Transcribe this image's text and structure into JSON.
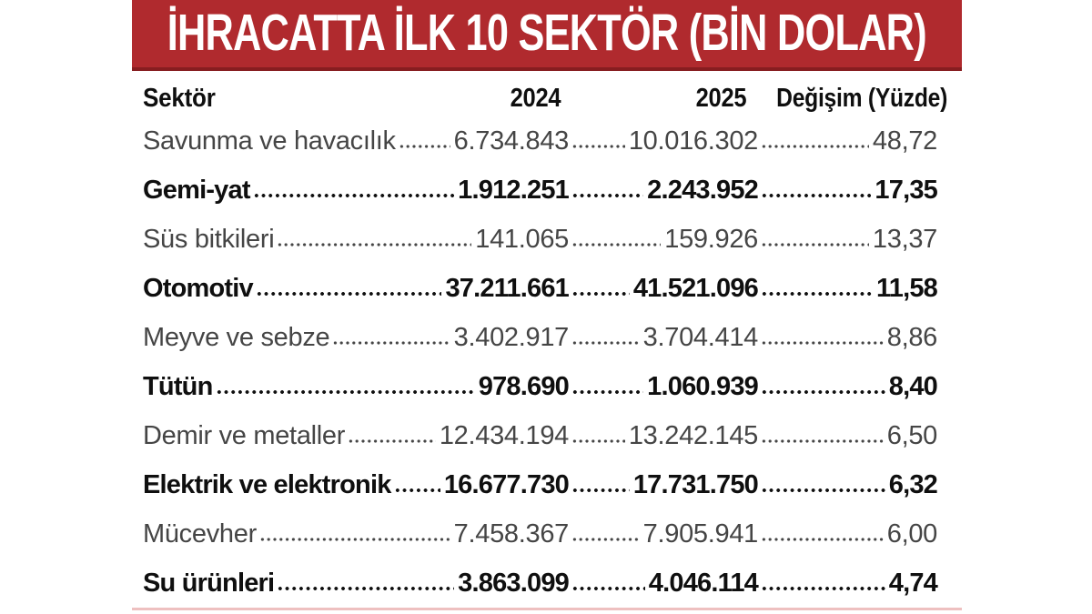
{
  "title": "İHRACATTA İLK 10 SEKTÖR (BİN DOLAR)",
  "header": {
    "sector": "Sektör",
    "y2024": "2024",
    "y2025": "2025",
    "change": "Değişim (Yüzde)"
  },
  "rows": [
    {
      "sector": "Savunma ve havacılık",
      "v2024": "6.734.843",
      "v2025": "10.016.302",
      "change": "48,72",
      "bold": false
    },
    {
      "sector": "Gemi-yat",
      "v2024": "1.912.251",
      "v2025": "2.243.952",
      "change": "17,35",
      "bold": true
    },
    {
      "sector": "Süs bitkileri",
      "v2024": "141.065",
      "v2025": "159.926",
      "change": "13,37",
      "bold": false
    },
    {
      "sector": "Otomotiv",
      "v2024": "37.211.661",
      "v2025": "41.521.096",
      "change": "11,58",
      "bold": true
    },
    {
      "sector": "Meyve ve sebze",
      "v2024": "3.402.917",
      "v2025": "3.704.414",
      "change": "8,86",
      "bold": false
    },
    {
      "sector": "Tütün",
      "v2024": "978.690",
      "v2025": "1.060.939",
      "change": "8,40",
      "bold": true
    },
    {
      "sector": "Demir ve metaller",
      "v2024": "12.434.194",
      "v2025": "13.242.145",
      "change": "6,50",
      "bold": false
    },
    {
      "sector": "Elektrik ve elektronik",
      "v2024": "16.677.730",
      "v2025": "17.731.750",
      "change": "6,32",
      "bold": true
    },
    {
      "sector": "Mücevher",
      "v2024": "7.458.367",
      "v2025": "7.905.941",
      "change": "6,00",
      "bold": false
    },
    {
      "sector": "Su ürünleri",
      "v2024": "3.863.099",
      "v2025": "4.046.114",
      "change": "4,74",
      "bold": true
    }
  ],
  "colors": {
    "banner_red": "#b02a2e",
    "banner_edge": "#871d20",
    "bottom_line": "#eec0c0",
    "text_regular": "#454545",
    "text_bold": "#0f0f0f"
  },
  "chart_data": {
    "type": "table",
    "title": "İHRACATTA İLK 10 SEKTÖR (BİN DOLAR)",
    "unit": "bin dolar",
    "columns": [
      "Sektör",
      "2024",
      "2025",
      "Değişim (Yüzde)"
    ],
    "rows": [
      [
        "Savunma ve havacılık",
        6734843,
        10016302,
        48.72
      ],
      [
        "Gemi-yat",
        1912251,
        2243952,
        17.35
      ],
      [
        "Süs bitkileri",
        141065,
        159926,
        13.37
      ],
      [
        "Otomotiv",
        37211661,
        41521096,
        11.58
      ],
      [
        "Meyve ve sebze",
        3402917,
        3704414,
        8.86
      ],
      [
        "Tütün",
        978690,
        1060939,
        8.4
      ],
      [
        "Demir ve metaller",
        12434194,
        13242145,
        6.5
      ],
      [
        "Elektrik ve elektronik",
        16677730,
        17731750,
        6.32
      ],
      [
        "Mücevher",
        7458367,
        7905941,
        6.0
      ],
      [
        "Su ürünleri",
        3863099,
        4046114,
        4.74
      ]
    ]
  }
}
